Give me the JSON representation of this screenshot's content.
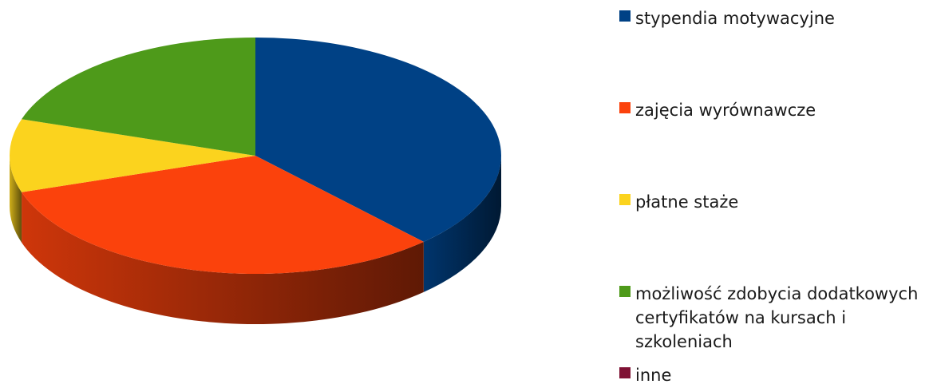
{
  "chart_data": {
    "type": "pie",
    "style": "3d",
    "title": "",
    "categories": [
      "stypendia motywacyjne",
      "zajęcia wyrównawcze",
      "płatne staże",
      "możliwość zdobycia dodatkowych certyfikatów na kursach i szkoleniach",
      "inne"
    ],
    "values": [
      38,
      32,
      10,
      20,
      0
    ],
    "colors": [
      "#004185",
      "#fb420c",
      "#fbd31e",
      "#4e9a1a",
      "#7f1234"
    ],
    "legend": "right"
  },
  "legend": {
    "items": [
      {
        "label": "stypendia motywacyjne",
        "color": "#004185"
      },
      {
        "label": "zajęcia wyrównawcze",
        "color": "#fb420c"
      },
      {
        "label": "płatne staże",
        "color": "#fbd31e"
      },
      {
        "label": "możliwość zdobycia dodatkowych certyfikatów na kursach i szkoleniach",
        "color": "#4e9a1a"
      },
      {
        "label": "inne",
        "color": "#7f1234"
      }
    ]
  }
}
